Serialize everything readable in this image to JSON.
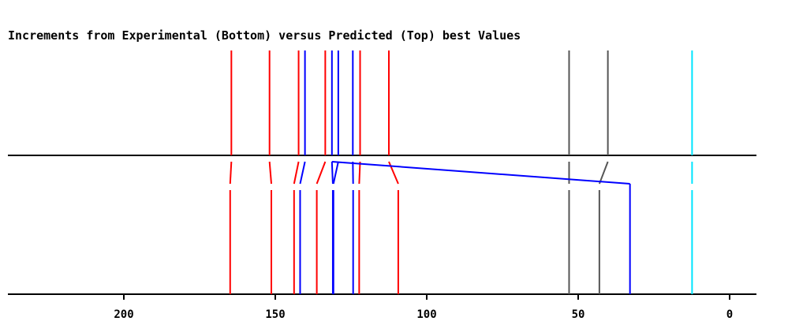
{
  "chart_data": {
    "type": "line",
    "title": "Increments from Experimental (Bottom) versus Predicted (Top) best Values",
    "xlabel": "",
    "ylabel": "",
    "x_axis": {
      "reversed": true,
      "ticks": [
        200,
        150,
        100,
        50,
        0
      ],
      "tick_labels": [
        "200",
        "150",
        "100",
        "50",
        "0"
      ]
    },
    "series": [
      {
        "color": "#ff0000",
        "top": 164.5,
        "bottom": 164.9
      },
      {
        "color": "#ff0000",
        "top": 151.9,
        "bottom": 151.3
      },
      {
        "color": "#ff0000",
        "top": 142.3,
        "bottom": 143.8
      },
      {
        "color": "#0000ff",
        "top": 140.2,
        "bottom": 141.8
      },
      {
        "color": "#ff0000",
        "top": 133.5,
        "bottom": 136.3
      },
      {
        "color": "#0000ff",
        "top": 131.3,
        "bottom": 131.0
      },
      {
        "color": "#0000ff",
        "top": 129.2,
        "bottom": 130.8
      },
      {
        "color": "#0000ff",
        "top": 124.4,
        "bottom": 124.3
      },
      {
        "color": "#ff0000",
        "top": 122.0,
        "bottom": 122.3
      },
      {
        "color": "#ff0000",
        "top": 112.5,
        "bottom": 109.4
      },
      {
        "color": "#555555",
        "top": 53.0,
        "bottom": 53.0
      },
      {
        "color": "#555555",
        "top": 40.2,
        "bottom": 43.0
      },
      {
        "color": "#0000ff",
        "top": 131.3,
        "bottom": 32.9
      },
      {
        "color": "#00e5ff",
        "top": 12.4,
        "bottom": 12.4
      }
    ],
    "grid": false,
    "legend": "none"
  }
}
